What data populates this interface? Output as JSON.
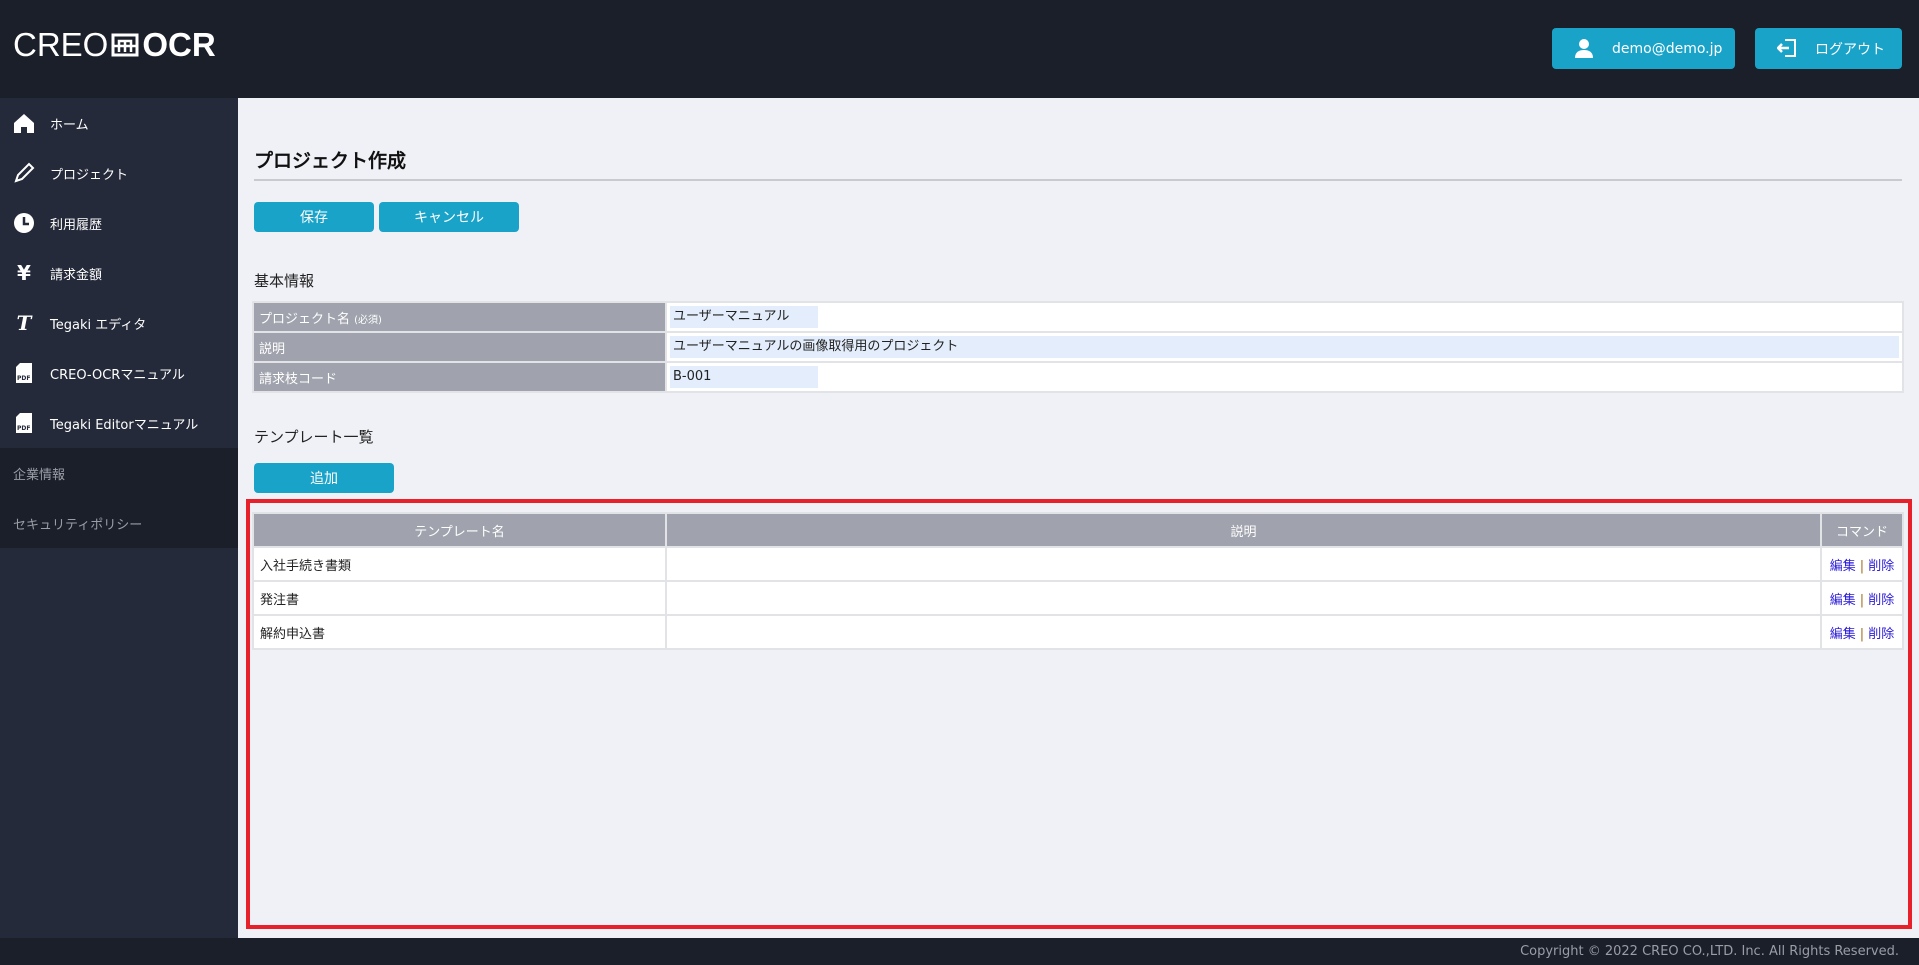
{
  "header": {
    "logo_left": "CREO",
    "logo_right": "OCR",
    "user_email": "demo@demo.jp",
    "logout_label": "ログアウト"
  },
  "sidebar": {
    "items": [
      {
        "label": "ホーム",
        "icon": "home-icon"
      },
      {
        "label": "プロジェクト",
        "icon": "pencil-icon"
      },
      {
        "label": "利用履歴",
        "icon": "clock-icon"
      },
      {
        "label": "請求金額",
        "icon": "yen-icon"
      },
      {
        "label": "Tegaki エディタ",
        "icon": "tegaki-icon"
      },
      {
        "label": "CREO-OCRマニュアル",
        "icon": "pdf-icon"
      },
      {
        "label": "Tegaki Editorマニュアル",
        "icon": "pdf-icon"
      }
    ],
    "sub_items": [
      {
        "label": "企業情報"
      },
      {
        "label": "セキュリティポリシー"
      }
    ]
  },
  "main": {
    "title": "プロジェクト作成",
    "save_label": "保存",
    "cancel_label": "キャンセル",
    "basic_heading": "基本情報",
    "form": [
      {
        "label": "プロジェクト名",
        "note": "(必須)",
        "value": "ユーザーマニュアル"
      },
      {
        "label": "説明",
        "value": "ユーザーマニュアルの画像取得用のプロジェクト"
      },
      {
        "label": "請求枝コード",
        "value": "B-001"
      }
    ],
    "template_heading": "テンプレート一覧",
    "add_label": "追加",
    "table": {
      "columns": [
        "テンプレート名",
        "説明",
        "コマンド"
      ],
      "rows": [
        {
          "name": "入社手続き書類",
          "description": ""
        },
        {
          "name": "発注書",
          "description": ""
        },
        {
          "name": "解約申込書",
          "description": ""
        }
      ],
      "edit_label": "編集",
      "separator": "|",
      "delete_label": "削除"
    }
  },
  "footer": {
    "copyright": "Copyright © 2022 CREO CO.,LTD. Inc. All Rights Reserved."
  },
  "colors": {
    "accent": "#1aa3c8",
    "header": "#1b1f29",
    "sidebar": "#252a3a",
    "highlight": "#e8202a"
  }
}
